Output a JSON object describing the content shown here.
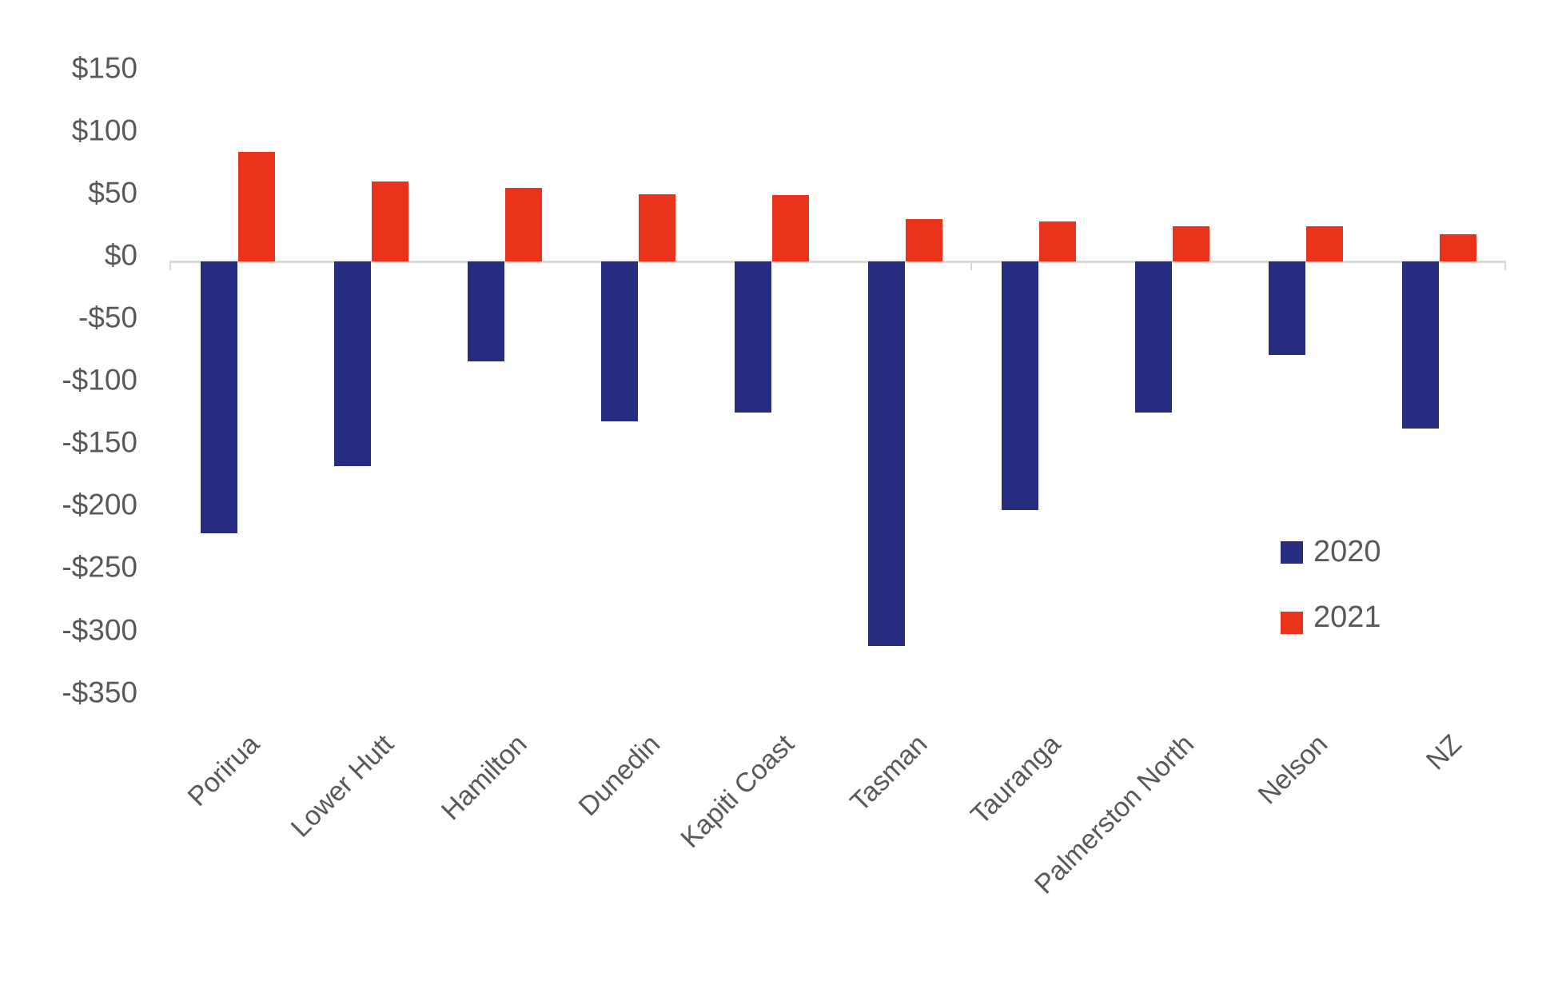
{
  "chart_data": {
    "type": "bar",
    "title": "",
    "categories": [
      "Porirua",
      "Lower Hutt",
      "Hamilton",
      "Dunedin",
      "Kapiti Coast",
      "Tasman",
      "Tauranga",
      "Palmerston North",
      "Nelson",
      "NZ"
    ],
    "series": [
      {
        "name": "2020",
        "color": "#262c7f",
        "values": [
          -218,
          -164,
          -80,
          -128,
          -121,
          -308,
          -199,
          -121,
          -75,
          -134
        ]
      },
      {
        "name": "2021",
        "color": "#e9331b",
        "values": [
          88,
          64,
          59,
          54,
          53,
          34,
          32,
          28,
          28,
          22
        ]
      }
    ],
    "y_axis": {
      "min": -350,
      "max": 150,
      "step": 50,
      "tick_values": [
        150,
        100,
        50,
        0,
        -50,
        -100,
        -150,
        -200,
        -250,
        -300,
        -350
      ],
      "tick_labels": [
        "$150",
        "$100",
        "$50",
        "$0",
        "-$50",
        "-$100",
        "-$150",
        "-$200",
        "-$250",
        "-$300",
        "-$350"
      ],
      "label_color": "#595959"
    },
    "x_axis": {
      "label_rotation_deg": -45,
      "label_color": "#595959",
      "axis_line_color": "#d9d9d9"
    },
    "legend": {
      "position": "right-middle",
      "entries": [
        {
          "label": "2020",
          "color": "#262c7f"
        },
        {
          "label": "2021",
          "color": "#e9331b"
        }
      ]
    },
    "grid": "off",
    "background": "#ffffff"
  }
}
